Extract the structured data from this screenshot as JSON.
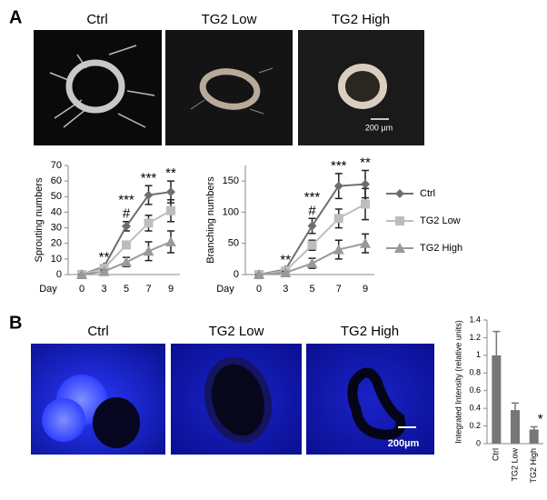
{
  "panel_labels": [
    "A",
    "B"
  ],
  "photos_a": {
    "labels": [
      "Ctrl",
      "TG2 Low",
      "TG2 High"
    ],
    "scale_bar": "200 µm"
  },
  "photos_b": {
    "labels": [
      "Ctrl",
      "TG2 Low",
      "TG2 High"
    ],
    "scale_bar": "200µm"
  },
  "chart_data": [
    {
      "type": "line",
      "y_label": "Sprouting numbers",
      "x_label": "Day",
      "categories": [
        "0",
        "3",
        "5",
        "7",
        "9"
      ],
      "ylim": [
        0,
        70
      ],
      "yticks": [
        0,
        10,
        20,
        30,
        40,
        50,
        60,
        70
      ],
      "series": [
        {
          "name": "Ctrl",
          "color": "#6e6e6e",
          "marker": "diamond",
          "values": [
            0,
            5,
            31,
            51,
            53
          ],
          "errors": [
            0,
            1,
            3,
            6,
            7
          ]
        },
        {
          "name": "TG2 Low",
          "color": "#bdbdbd",
          "marker": "square",
          "values": [
            0,
            4,
            19,
            33,
            41
          ],
          "errors": [
            0,
            1,
            2,
            5,
            7
          ]
        },
        {
          "name": "TG2 High",
          "color": "#999999",
          "marker": "triangle",
          "values": [
            0,
            2,
            8,
            15,
            21
          ],
          "errors": [
            0,
            1,
            3,
            6,
            7
          ]
        }
      ],
      "annotations": [
        null,
        [
          "**"
        ],
        [
          "***",
          "#"
        ],
        [
          "***"
        ],
        [
          "**"
        ]
      ]
    },
    {
      "type": "line",
      "y_label": "Branching numbers",
      "x_label": "Day",
      "categories": [
        "0",
        "3",
        "5",
        "7",
        "9"
      ],
      "ylim": [
        0,
        175
      ],
      "yticks": [
        0,
        50,
        100,
        150
      ],
      "legend": "right",
      "series": [
        {
          "name": "Ctrl",
          "color": "#6e6e6e",
          "marker": "diamond",
          "values": [
            0,
            8,
            78,
            142,
            145
          ],
          "errors": [
            0,
            3,
            12,
            20,
            22
          ]
        },
        {
          "name": "TG2 Low",
          "color": "#bdbdbd",
          "marker": "square",
          "values": [
            0,
            6,
            47,
            90,
            113
          ],
          "errors": [
            0,
            3,
            8,
            15,
            25
          ]
        },
        {
          "name": "TG2 High",
          "color": "#999999",
          "marker": "triangle",
          "values": [
            0,
            3,
            18,
            40,
            50
          ],
          "errors": [
            0,
            2,
            8,
            15,
            15
          ]
        }
      ],
      "annotations": [
        null,
        [
          "**"
        ],
        [
          "***",
          "#"
        ],
        [
          "***"
        ],
        [
          "**"
        ]
      ]
    },
    {
      "type": "bar",
      "y_label": "Integrated Intensity (relative units)",
      "categories": [
        "Ctrl",
        "TG2 Low",
        "TG2 High"
      ],
      "values": [
        1.0,
        0.38,
        0.16
      ],
      "errors": [
        0.27,
        0.08,
        0.03
      ],
      "color": "#777777",
      "ylim": [
        0,
        1.4
      ],
      "yticks": [
        0,
        0.2,
        0.4,
        0.6,
        0.8,
        1,
        1.2,
        1.4
      ],
      "annotations": [
        null,
        null,
        [
          "*"
        ]
      ]
    }
  ]
}
